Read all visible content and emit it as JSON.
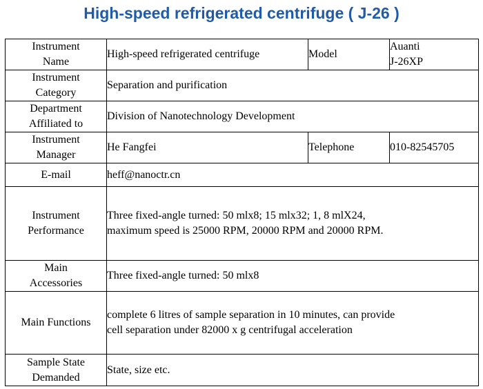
{
  "title": "High-speed refrigerated centrifuge ( J-26 )",
  "colors": {
    "title": "#1f5ba8",
    "border": "#000000",
    "text": "#000000"
  },
  "rows": {
    "instrument_name": {
      "label_line1": "Instrument",
      "label_line2": "Name",
      "value": "High-speed refrigerated centrifuge",
      "model_label": "Model",
      "model_value_line1": "Auanti",
      "model_value_line2": "J-26XP"
    },
    "instrument_category": {
      "label_line1": "Instrument",
      "label_line2": "Category",
      "value": "Separation and purification"
    },
    "department": {
      "label_line1": "Department",
      "label_line2": "Affiliated to",
      "value": "Division of Nanotechnology Development"
    },
    "manager": {
      "label_line1": "Instrument",
      "label_line2": "Manager",
      "value": "He Fangfei",
      "telephone_label": "Telephone",
      "telephone_value": "010-82545705"
    },
    "email": {
      "label": "E-mail",
      "value": "heff@nanoctr.cn"
    },
    "performance": {
      "label_line1": "Instrument",
      "label_line2": "Performance",
      "value_line1": "Three fixed-angle turned: 50 mlx8; 15 mlx32; 1, 8 mlX24,",
      "value_line2": "maximum speed is 25000 RPM, 20000 RPM and 20000 RPM."
    },
    "accessories": {
      "label_line1": "Main",
      "label_line2": "Accessories",
      "value": "Three fixed-angle turned: 50 mlx8"
    },
    "functions": {
      "label": "Main Functions",
      "value_line1": "complete 6 litres of sample separation in 10 minutes, can provide",
      "value_line2": "cell separation under 82000 x g centrifugal acceleration"
    },
    "sample_state": {
      "label_line1": "Sample State",
      "label_line2": "Demanded",
      "value": "State, size etc."
    }
  }
}
